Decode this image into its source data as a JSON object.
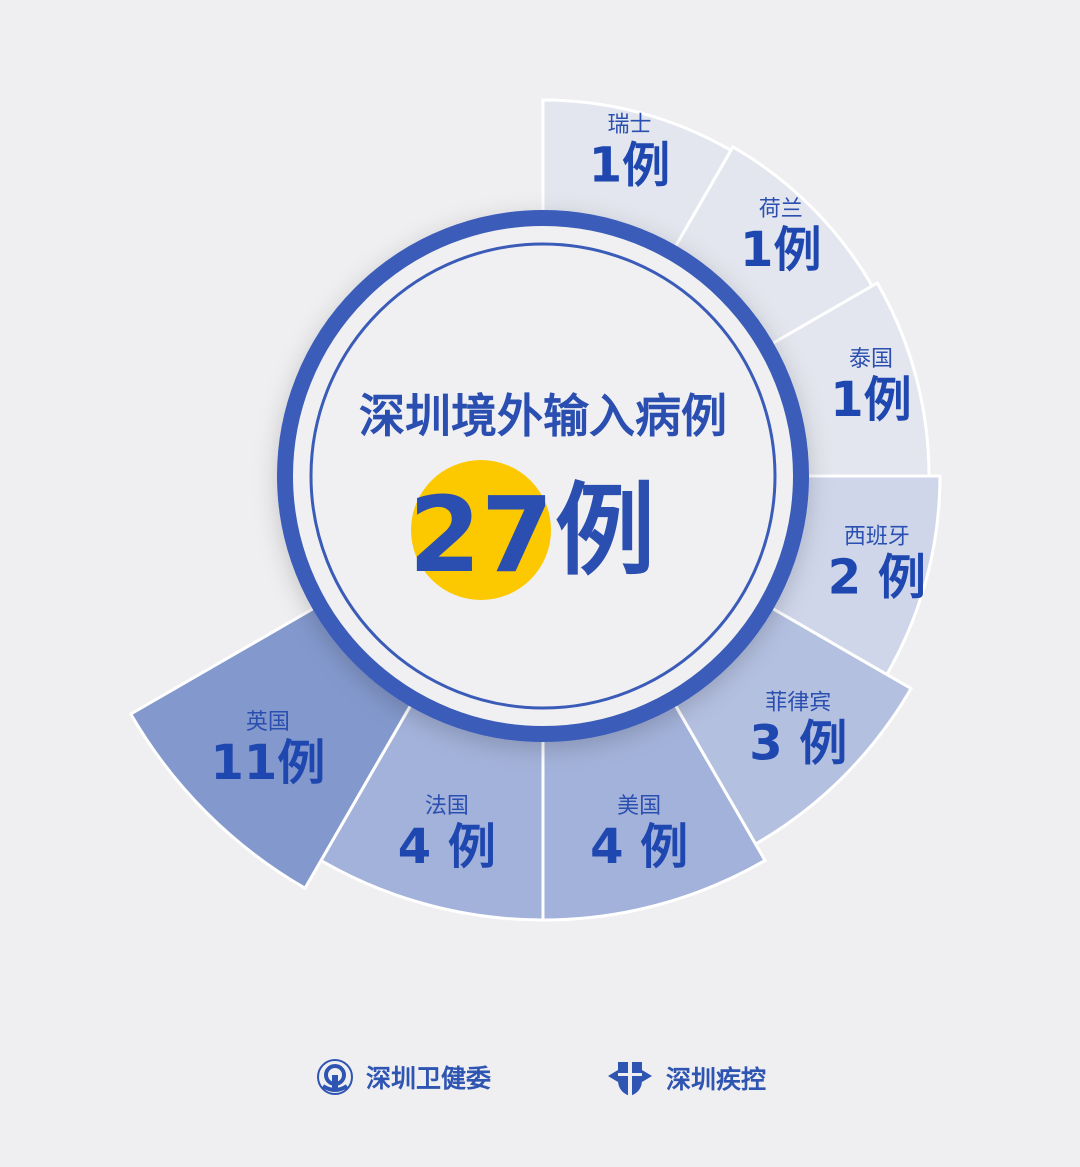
{
  "chart_data": {
    "type": "radial-bar",
    "title": "深圳境外输入病例",
    "total": {
      "value": "27",
      "unit": "例"
    },
    "unit": "例",
    "categories": [
      "瑞士",
      "荷兰",
      "泰国",
      "西班牙",
      "菲律宾",
      "美国",
      "法国",
      "英国"
    ],
    "values": [
      1,
      1,
      1,
      2,
      3,
      4,
      4,
      11
    ],
    "labels": [
      "1例",
      "1例",
      "1例",
      "2 例",
      "3 例",
      "4 例",
      "4 例",
      "11例"
    ],
    "colors": {
      "low": "#e2e5ee",
      "high": "#8398cc",
      "text": "#2a4fb0",
      "ring": "#3a5cb8",
      "highlight": "#fcc800"
    }
  },
  "footer": {
    "org1": {
      "name": "深圳卫健委",
      "icon": "health-commission-emblem-icon"
    },
    "org2": {
      "name": "深圳疾控",
      "icon": "cdc-shield-icon"
    }
  }
}
